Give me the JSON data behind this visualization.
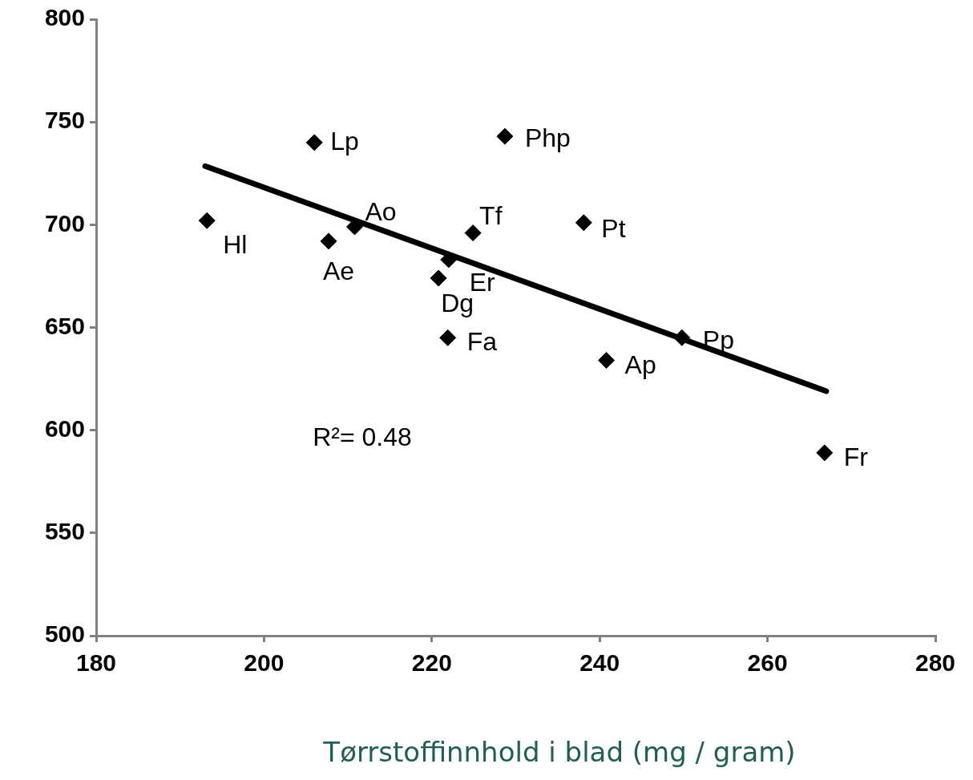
{
  "chart_data": {
    "type": "scatter",
    "xlabel": "Tørrstoffinnhold i blad (mg / gram)",
    "xlim": [
      180,
      280
    ],
    "xticks": [
      180,
      200,
      220,
      240,
      260,
      280
    ],
    "ylim": [
      500,
      800
    ],
    "yticks": [
      500,
      550,
      600,
      650,
      700,
      750,
      800
    ],
    "legend": false,
    "series": [
      {
        "marker": "diamond",
        "color": "#000000",
        "x": [
          193.2,
          206,
          207.7,
          210.8,
          220.8,
          222,
          221.9,
          224.9,
          228.7,
          238.1,
          240.8,
          249.8,
          266.8
        ],
        "values": [
          702,
          740,
          692,
          699,
          674,
          683,
          645,
          696,
          743,
          701,
          634,
          645,
          589
        ]
      },
      {
        "type": "line",
        "marker": "none",
        "color": "#000000",
        "x": [
          193,
          267
        ],
        "values": [
          728.5,
          619
        ]
      }
    ],
    "annotations": [
      {
        "text": "Hl",
        "x": 193.2,
        "y": 702
      },
      {
        "text": "Lp",
        "x": 206,
        "y": 740
      },
      {
        "text": "Ae",
        "x": 207.7,
        "y": 692
      },
      {
        "text": "Ao",
        "x": 210.8,
        "y": 699
      },
      {
        "text": "Dg",
        "x": 220.8,
        "y": 674
      },
      {
        "text": "Er",
        "x": 222,
        "y": 683
      },
      {
        "text": "Fa",
        "x": 221.9,
        "y": 645
      },
      {
        "text": "Tf",
        "x": 224.9,
        "y": 696
      },
      {
        "text": "Php",
        "x": 228.7,
        "y": 743
      },
      {
        "text": "Pt",
        "x": 238.1,
        "y": 701
      },
      {
        "text": "Ap",
        "x": 240.8,
        "y": 634
      },
      {
        "text": "Pp",
        "x": 249.8,
        "y": 645
      },
      {
        "text": "Fr",
        "x": 266.8,
        "y": 589
      },
      "R²= 0.48"
    ]
  }
}
